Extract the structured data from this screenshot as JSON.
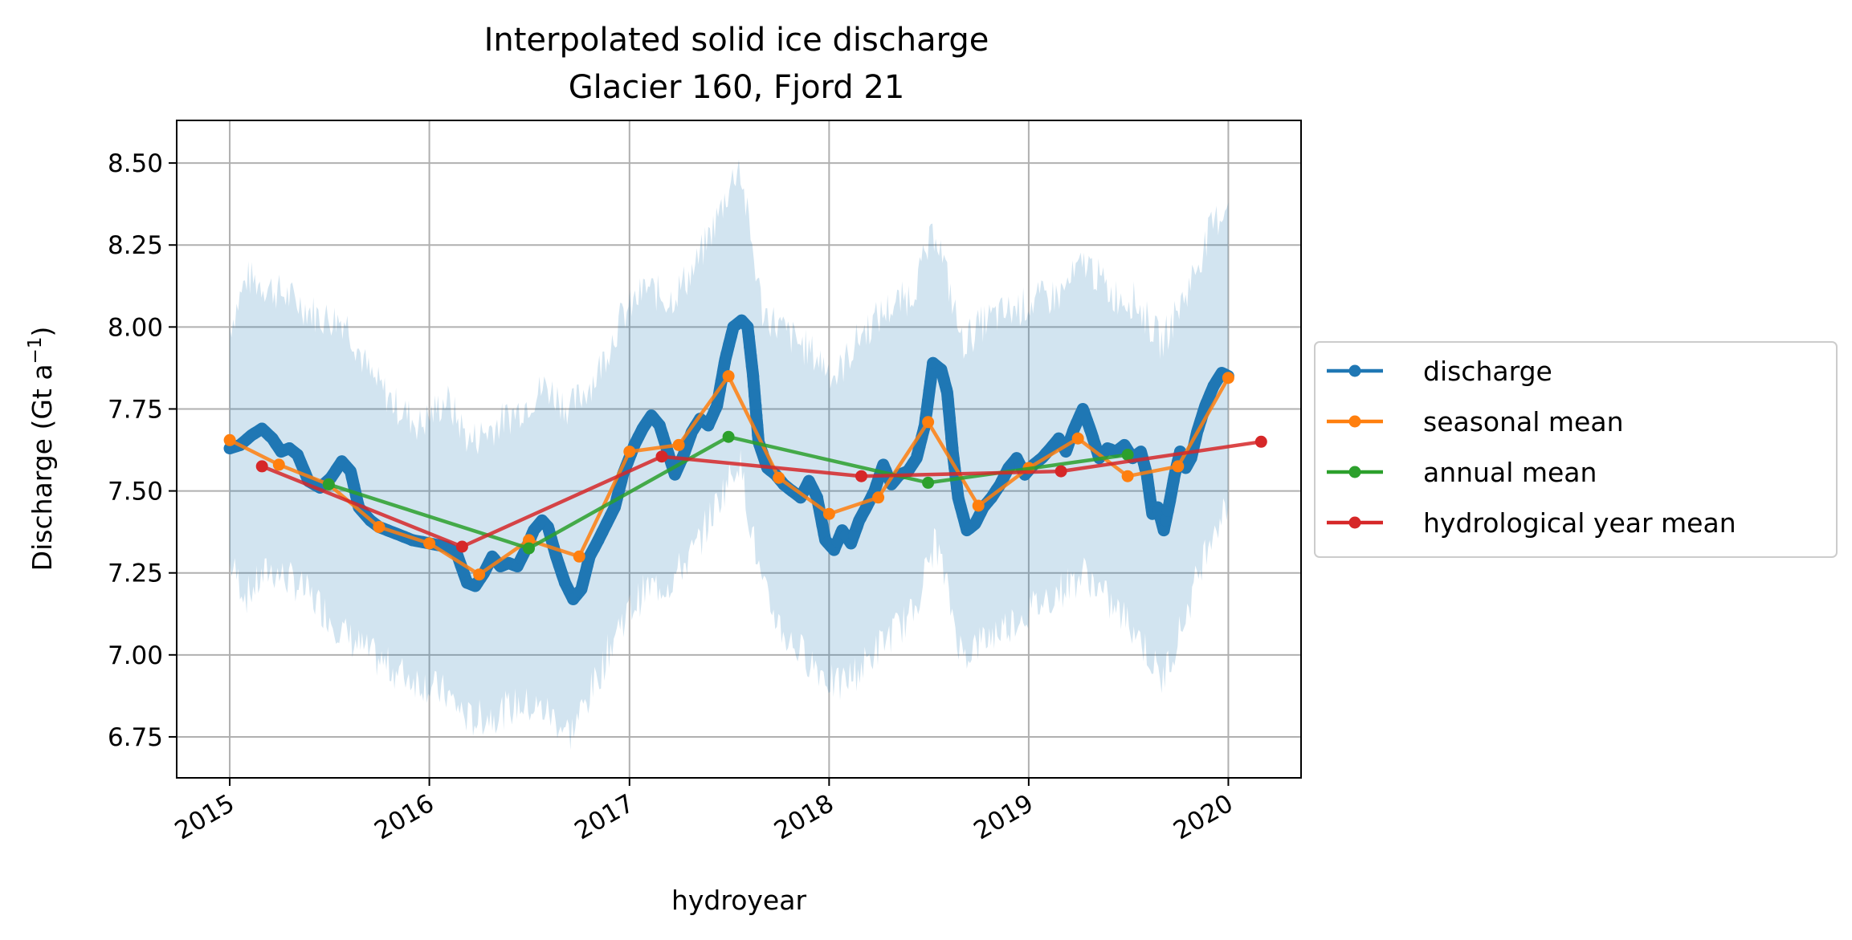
{
  "chart_data": {
    "type": "line",
    "title": "Interpolated solid ice discharge",
    "subtitle": "Glacier 160, Fjord 21",
    "xlabel": "hydroyear",
    "ylabel_main": "Discharge (Gt a",
    "ylabel_sup": "−1",
    "ylabel_close": ")",
    "x_axis": "date",
    "xlim": [
      "2014-09-26",
      "2020-05-13"
    ],
    "ylim": [
      6.625,
      8.63
    ],
    "x_ticks": [
      {
        "date": "2015-01-01",
        "label": "2015"
      },
      {
        "date": "2016-01-01",
        "label": "2016"
      },
      {
        "date": "2017-01-01",
        "label": "2017"
      },
      {
        "date": "2018-01-01",
        "label": "2018"
      },
      {
        "date": "2019-01-01",
        "label": "2019"
      },
      {
        "date": "2020-01-01",
        "label": "2020"
      }
    ],
    "y_ticks": [
      {
        "value": 6.75,
        "label": "6.75"
      },
      {
        "value": 7.0,
        "label": "7.00"
      },
      {
        "value": 7.25,
        "label": "7.25"
      },
      {
        "value": 7.5,
        "label": "7.50"
      },
      {
        "value": 7.75,
        "label": "7.75"
      },
      {
        "value": 8.0,
        "label": "8.00"
      },
      {
        "value": 8.25,
        "label": "8.25"
      },
      {
        "value": 8.5,
        "label": "8.50"
      }
    ],
    "grid": true,
    "legend_position": "right-outside",
    "series": [
      {
        "name": "discharge",
        "color": "#1f77b4",
        "style": "thick-markers",
        "points": [
          [
            "2015-01-01",
            7.63
          ],
          [
            "2015-01-20",
            7.64
          ],
          [
            "2015-02-10",
            7.67
          ],
          [
            "2015-03-01",
            7.69
          ],
          [
            "2015-03-20",
            7.66
          ],
          [
            "2015-04-05",
            7.62
          ],
          [
            "2015-04-20",
            7.63
          ],
          [
            "2015-05-05",
            7.61
          ],
          [
            "2015-05-25",
            7.53
          ],
          [
            "2015-06-15",
            7.51
          ],
          [
            "2015-07-05",
            7.54
          ],
          [
            "2015-07-25",
            7.59
          ],
          [
            "2015-08-10",
            7.56
          ],
          [
            "2015-08-25",
            7.45
          ],
          [
            "2015-09-15",
            7.41
          ],
          [
            "2015-10-01",
            7.39
          ],
          [
            "2015-11-01",
            7.37
          ],
          [
            "2015-12-01",
            7.35
          ],
          [
            "2016-01-01",
            7.34
          ],
          [
            "2016-02-01",
            7.33
          ],
          [
            "2016-02-20",
            7.31
          ],
          [
            "2016-03-10",
            7.22
          ],
          [
            "2016-03-25",
            7.21
          ],
          [
            "2016-04-10",
            7.25
          ],
          [
            "2016-04-25",
            7.3
          ],
          [
            "2016-05-10",
            7.27
          ],
          [
            "2016-05-25",
            7.28
          ],
          [
            "2016-06-10",
            7.27
          ],
          [
            "2016-06-25",
            7.32
          ],
          [
            "2016-07-10",
            7.38
          ],
          [
            "2016-07-25",
            7.41
          ],
          [
            "2016-08-05",
            7.39
          ],
          [
            "2016-08-20",
            7.3
          ],
          [
            "2016-09-05",
            7.22
          ],
          [
            "2016-09-20",
            7.17
          ],
          [
            "2016-10-05",
            7.2
          ],
          [
            "2016-10-20",
            7.3
          ],
          [
            "2016-11-05",
            7.35
          ],
          [
            "2016-11-20",
            7.4
          ],
          [
            "2016-12-05",
            7.45
          ],
          [
            "2016-12-20",
            7.55
          ],
          [
            "2017-01-10",
            7.64
          ],
          [
            "2017-01-25",
            7.69
          ],
          [
            "2017-02-10",
            7.73
          ],
          [
            "2017-02-25",
            7.7
          ],
          [
            "2017-03-10",
            7.63
          ],
          [
            "2017-03-25",
            7.55
          ],
          [
            "2017-04-10",
            7.61
          ],
          [
            "2017-04-25",
            7.68
          ],
          [
            "2017-05-10",
            7.72
          ],
          [
            "2017-05-25",
            7.7
          ],
          [
            "2017-06-10",
            7.76
          ],
          [
            "2017-06-25",
            7.9
          ],
          [
            "2017-07-10",
            8.0
          ],
          [
            "2017-07-25",
            8.02
          ],
          [
            "2017-08-05",
            8.0
          ],
          [
            "2017-08-15",
            7.85
          ],
          [
            "2017-08-25",
            7.65
          ],
          [
            "2017-09-10",
            7.57
          ],
          [
            "2017-09-25",
            7.55
          ],
          [
            "2017-10-10",
            7.52
          ],
          [
            "2017-10-25",
            7.5
          ],
          [
            "2017-11-10",
            7.48
          ],
          [
            "2017-11-25",
            7.53
          ],
          [
            "2017-12-10",
            7.48
          ],
          [
            "2017-12-25",
            7.35
          ],
          [
            "2018-01-10",
            7.32
          ],
          [
            "2018-01-25",
            7.38
          ],
          [
            "2018-02-10",
            7.34
          ],
          [
            "2018-02-25",
            7.41
          ],
          [
            "2018-03-10",
            7.45
          ],
          [
            "2018-03-25",
            7.5
          ],
          [
            "2018-04-10",
            7.58
          ],
          [
            "2018-04-25",
            7.52
          ],
          [
            "2018-05-10",
            7.55
          ],
          [
            "2018-05-25",
            7.56
          ],
          [
            "2018-06-10",
            7.6
          ],
          [
            "2018-06-25",
            7.7
          ],
          [
            "2018-07-10",
            7.89
          ],
          [
            "2018-07-25",
            7.87
          ],
          [
            "2018-08-05",
            7.8
          ],
          [
            "2018-08-15",
            7.62
          ],
          [
            "2018-08-25",
            7.48
          ],
          [
            "2018-09-10",
            7.38
          ],
          [
            "2018-09-25",
            7.4
          ],
          [
            "2018-10-10",
            7.45
          ],
          [
            "2018-10-25",
            7.48
          ],
          [
            "2018-11-10",
            7.52
          ],
          [
            "2018-11-25",
            7.57
          ],
          [
            "2018-12-10",
            7.6
          ],
          [
            "2018-12-25",
            7.55
          ],
          [
            "2019-01-10",
            7.58
          ],
          [
            "2019-01-25",
            7.6
          ],
          [
            "2019-02-10",
            7.63
          ],
          [
            "2019-02-25",
            7.66
          ],
          [
            "2019-03-10",
            7.62
          ],
          [
            "2019-03-25",
            7.69
          ],
          [
            "2019-04-10",
            7.75
          ],
          [
            "2019-04-25",
            7.68
          ],
          [
            "2019-05-10",
            7.6
          ],
          [
            "2019-05-25",
            7.63
          ],
          [
            "2019-06-10",
            7.62
          ],
          [
            "2019-06-25",
            7.64
          ],
          [
            "2019-07-10",
            7.6
          ],
          [
            "2019-07-25",
            7.62
          ],
          [
            "2019-08-05",
            7.55
          ],
          [
            "2019-08-15",
            7.43
          ],
          [
            "2019-08-25",
            7.45
          ],
          [
            "2019-09-05",
            7.38
          ],
          [
            "2019-09-15",
            7.46
          ],
          [
            "2019-09-25",
            7.55
          ],
          [
            "2019-10-05",
            7.62
          ],
          [
            "2019-10-15",
            7.57
          ],
          [
            "2019-10-25",
            7.6
          ],
          [
            "2019-11-05",
            7.68
          ],
          [
            "2019-11-20",
            7.76
          ],
          [
            "2019-12-05",
            7.82
          ],
          [
            "2019-12-20",
            7.86
          ],
          [
            "2020-01-01",
            7.85
          ]
        ]
      },
      {
        "name": "seasonal mean",
        "color": "#ff7f0e",
        "style": "line-markers",
        "points": [
          [
            "2015-01-01",
            7.655
          ],
          [
            "2015-04-01",
            7.58
          ],
          [
            "2015-07-01",
            7.52
          ],
          [
            "2015-10-01",
            7.39
          ],
          [
            "2016-01-01",
            7.34
          ],
          [
            "2016-04-01",
            7.245
          ],
          [
            "2016-07-01",
            7.35
          ],
          [
            "2016-10-01",
            7.3
          ],
          [
            "2017-01-01",
            7.62
          ],
          [
            "2017-04-01",
            7.64
          ],
          [
            "2017-07-01",
            7.85
          ],
          [
            "2017-10-01",
            7.54
          ],
          [
            "2018-01-01",
            7.43
          ],
          [
            "2018-04-01",
            7.48
          ],
          [
            "2018-07-01",
            7.71
          ],
          [
            "2018-10-01",
            7.455
          ],
          [
            "2019-01-01",
            7.57
          ],
          [
            "2019-04-01",
            7.66
          ],
          [
            "2019-07-01",
            7.545
          ],
          [
            "2019-10-01",
            7.575
          ],
          [
            "2020-01-01",
            7.845
          ]
        ]
      },
      {
        "name": "annual mean",
        "color": "#2ca02c",
        "style": "line-markers",
        "points": [
          [
            "2015-07-01",
            7.52
          ],
          [
            "2016-07-01",
            7.325
          ],
          [
            "2017-07-01",
            7.665
          ],
          [
            "2018-07-01",
            7.525
          ],
          [
            "2019-07-01",
            7.61
          ]
        ]
      },
      {
        "name": "hydrological year mean",
        "color": "#d62728",
        "style": "line-markers",
        "points": [
          [
            "2015-03-01",
            7.575
          ],
          [
            "2016-03-01",
            7.33
          ],
          [
            "2017-03-01",
            7.605
          ],
          [
            "2018-03-01",
            7.545
          ],
          [
            "2019-03-01",
            7.56
          ],
          [
            "2020-03-01",
            7.65
          ]
        ]
      }
    ],
    "uncertainty_band": {
      "color": "#1f77b4",
      "opacity": 0.2,
      "points": [
        [
          "2015-01-01",
          7.28,
          8.0
        ],
        [
          "2015-02-01",
          7.18,
          8.15
        ],
        [
          "2015-03-15",
          7.26,
          8.12
        ],
        [
          "2015-05-01",
          7.22,
          8.08
        ],
        [
          "2015-06-15",
          7.15,
          8.03
        ],
        [
          "2015-08-01",
          7.06,
          8.02
        ],
        [
          "2015-09-15",
          7.0,
          7.85
        ],
        [
          "2015-11-01",
          6.95,
          7.76
        ],
        [
          "2015-12-15",
          6.92,
          7.7
        ],
        [
          "2016-02-01",
          6.88,
          7.78
        ],
        [
          "2016-03-15",
          6.8,
          7.65
        ],
        [
          "2016-05-01",
          6.82,
          7.7
        ],
        [
          "2016-06-15",
          6.85,
          7.75
        ],
        [
          "2016-08-01",
          6.83,
          7.82
        ],
        [
          "2016-09-15",
          6.76,
          7.75
        ],
        [
          "2016-11-01",
          6.92,
          7.85
        ],
        [
          "2016-12-15",
          7.1,
          8.02
        ],
        [
          "2017-02-01",
          7.2,
          8.12
        ],
        [
          "2017-03-15",
          7.22,
          8.08
        ],
        [
          "2017-05-01",
          7.32,
          8.18
        ],
        [
          "2017-06-15",
          7.48,
          8.35
        ],
        [
          "2017-07-20",
          7.6,
          8.5
        ],
        [
          "2017-09-01",
          7.2,
          8.05
        ],
        [
          "2017-10-15",
          7.05,
          7.98
        ],
        [
          "2017-12-01",
          6.98,
          7.92
        ],
        [
          "2018-01-15",
          6.9,
          7.85
        ],
        [
          "2018-03-01",
          6.96,
          7.98
        ],
        [
          "2018-04-15",
          7.05,
          8.05
        ],
        [
          "2018-06-01",
          7.12,
          8.1
        ],
        [
          "2018-07-15",
          7.35,
          8.3
        ],
        [
          "2018-09-01",
          7.0,
          7.95
        ],
        [
          "2018-10-15",
          7.05,
          8.02
        ],
        [
          "2018-12-01",
          7.1,
          8.05
        ],
        [
          "2019-01-15",
          7.15,
          8.08
        ],
        [
          "2019-03-01",
          7.2,
          8.1
        ],
        [
          "2019-04-15",
          7.25,
          8.2
        ],
        [
          "2019-06-01",
          7.15,
          8.1
        ],
        [
          "2019-07-15",
          7.08,
          8.08
        ],
        [
          "2019-09-01",
          6.92,
          7.95
        ],
        [
          "2019-10-15",
          7.12,
          8.1
        ],
        [
          "2019-12-01",
          7.38,
          8.3
        ],
        [
          "2020-01-01",
          7.45,
          8.38
        ]
      ]
    }
  }
}
